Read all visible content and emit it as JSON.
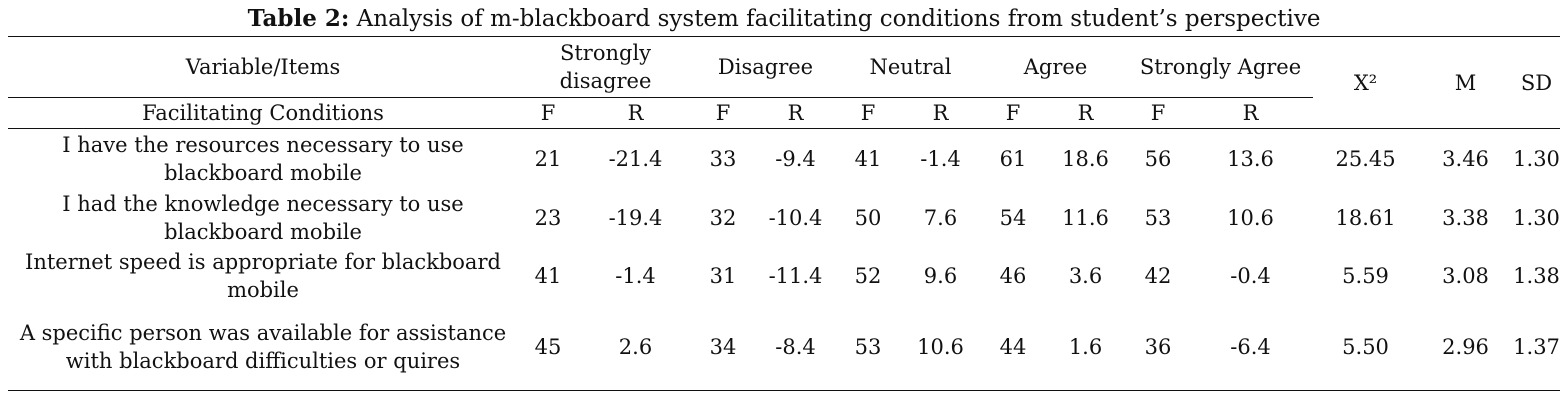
{
  "caption": {
    "label": "Table 2:",
    "text": "Analysis of m-blackboard system facilitating conditions from student’s perspective"
  },
  "header": {
    "variable": "Variable/Items",
    "groups": [
      "Strongly disagree",
      "Disagree",
      "Neutral",
      "Agree",
      "Strongly Agree"
    ],
    "chi": "X²",
    "mean": "M",
    "sd": "SD",
    "section": "Facilitating Conditions",
    "f": "F",
    "r": "R"
  },
  "rows": [
    {
      "item": "I have the resources necessary to use blackboard mobile",
      "cells": [
        "21",
        "-21.4",
        "33",
        "-9.4",
        "41",
        "-1.4",
        "61",
        "18.6",
        "56",
        "13.6"
      ],
      "chi": "25.45",
      "mean": "3.46",
      "sd": "1.30"
    },
    {
      "item": "I had the knowledge necessary to use blackboard mobile",
      "cells": [
        "23",
        "-19.4",
        "32",
        "-10.4",
        "50",
        "7.6",
        "54",
        "11.6",
        "53",
        "10.6"
      ],
      "chi": "18.61",
      "mean": "3.38",
      "sd": "1.30"
    },
    {
      "item": "Internet speed is appropriate for blackboard mobile",
      "cells": [
        "41",
        "-1.4",
        "31",
        "-11.4",
        "52",
        "9.6",
        "46",
        "3.6",
        "42",
        "-0.4"
      ],
      "chi": "5.59",
      "mean": "3.08",
      "sd": "1.38"
    },
    {
      "item": "A specific person was available for assistance with blackboard difficulties or quires",
      "cells": [
        "45",
        "2.6",
        "34",
        "-8.4",
        "53",
        "10.6",
        "44",
        "1.6",
        "36",
        "-6.4"
      ],
      "chi": "5.50",
      "mean": "2.96",
      "sd": "1.37"
    }
  ]
}
